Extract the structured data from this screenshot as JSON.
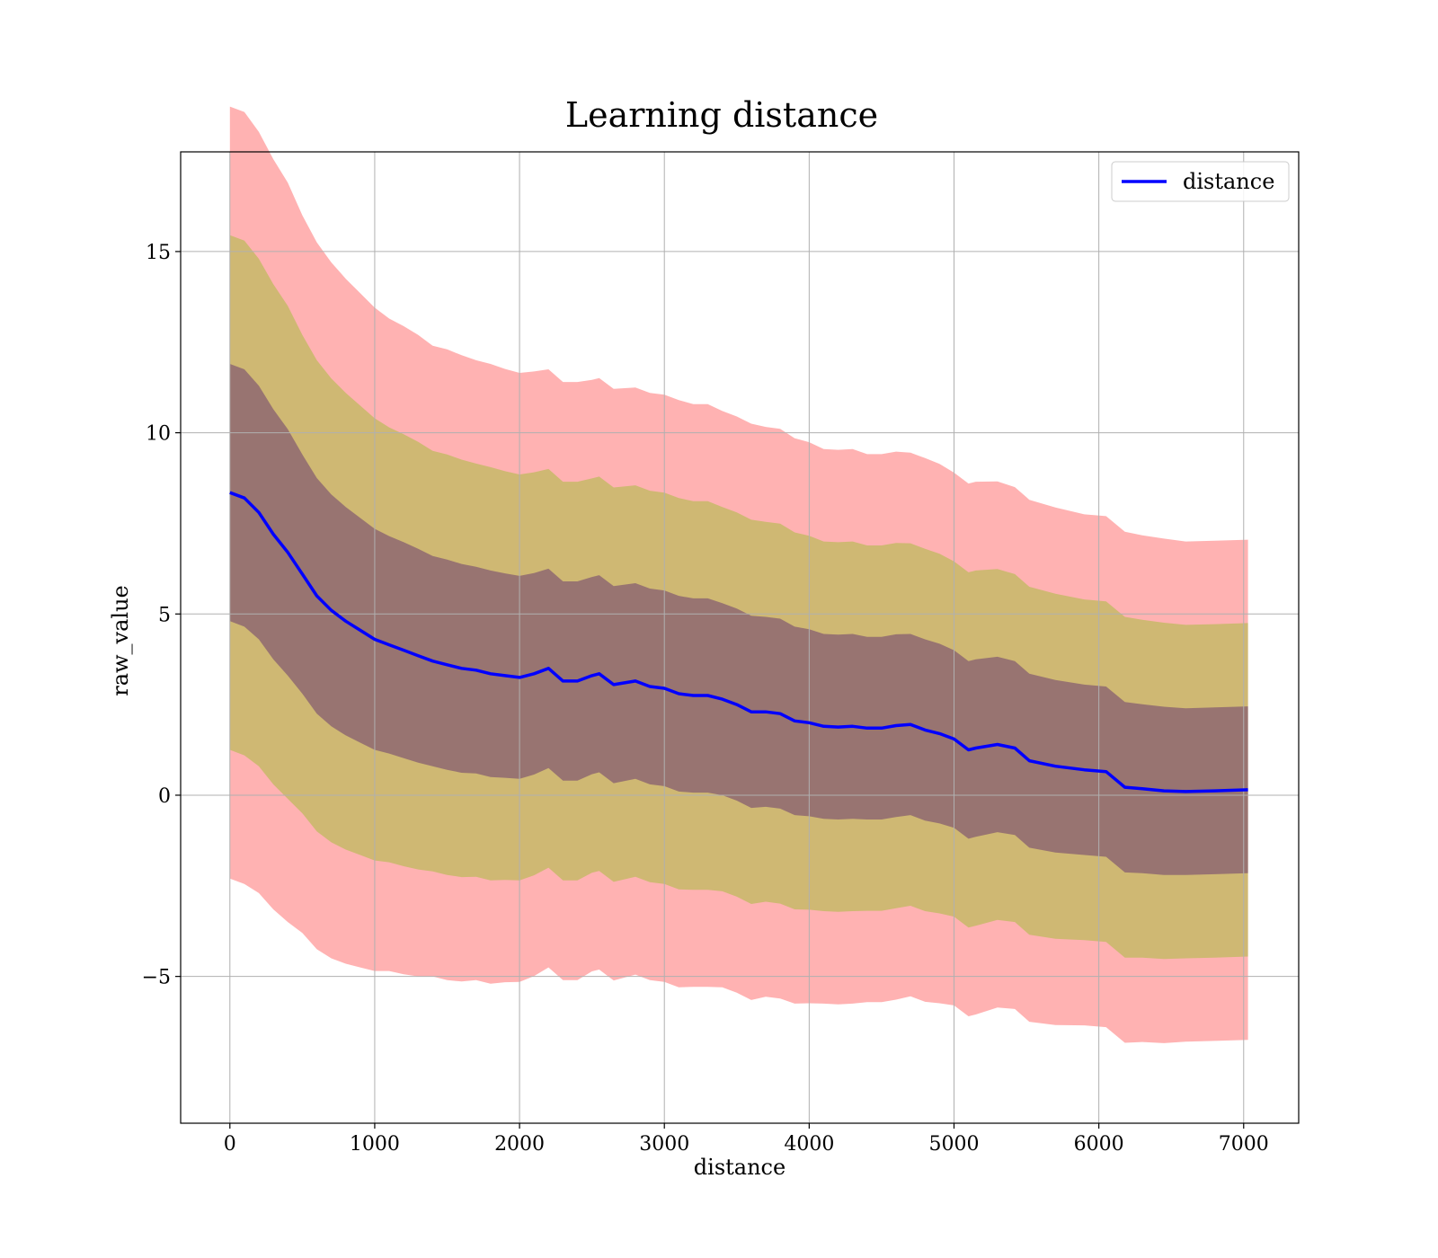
{
  "chart_data": {
    "type": "line",
    "title": "Learning distance",
    "xlabel": "distance",
    "ylabel": "raw_value",
    "xlim": [
      -340,
      7380
    ],
    "ylim": [
      -9.05,
      17.75
    ],
    "grid": true,
    "legend": {
      "placement": "top-right",
      "entries": [
        "distance"
      ]
    },
    "x_ticks": [
      0,
      1000,
      2000,
      3000,
      4000,
      5000,
      6000,
      7000
    ],
    "x_tick_labels": [
      "0",
      "1000",
      "2000",
      "3000",
      "4000",
      "5000",
      "6000",
      "7000"
    ],
    "y_ticks": [
      -5,
      0,
      5,
      10,
      15
    ],
    "y_tick_labels": [
      "−5",
      "0",
      "5",
      "10",
      "15"
    ],
    "colors": {
      "line": "#0000ff",
      "band_3std": "#ff5f5f",
      "band_2std": "#9bbf2f",
      "band_1std": "#5b2a6f",
      "grid": "#b0b0b0"
    },
    "series": [
      {
        "name": "distance",
        "x": [
          0,
          100,
          200,
          300,
          400,
          500,
          600,
          700,
          800,
          900,
          1000,
          1100,
          1200,
          1300,
          1400,
          1500,
          1600,
          1700,
          1800,
          1900,
          2000,
          2100,
          2200,
          2300,
          2400,
          2500,
          2550,
          2650,
          2800,
          2900,
          3000,
          3100,
          3200,
          3300,
          3400,
          3500,
          3600,
          3700,
          3800,
          3900,
          4000,
          4100,
          4200,
          4300,
          4400,
          4500,
          4600,
          4700,
          4800,
          4900,
          5000,
          5100,
          5150,
          5300,
          5420,
          5520,
          5700,
          5900,
          6050,
          6180,
          6300,
          6450,
          6600,
          6800,
          7030
        ],
        "y": [
          8.35,
          8.2,
          7.8,
          7.2,
          6.7,
          6.1,
          5.5,
          5.1,
          4.8,
          4.55,
          4.3,
          4.15,
          4.0,
          3.85,
          3.7,
          3.6,
          3.5,
          3.45,
          3.35,
          3.3,
          3.25,
          3.35,
          3.5,
          3.15,
          3.15,
          3.3,
          3.35,
          3.05,
          3.15,
          3.0,
          2.95,
          2.8,
          2.75,
          2.75,
          2.65,
          2.5,
          2.3,
          2.3,
          2.25,
          2.05,
          2.0,
          1.9,
          1.88,
          1.9,
          1.85,
          1.85,
          1.92,
          1.95,
          1.8,
          1.7,
          1.55,
          1.25,
          1.3,
          1.4,
          1.3,
          0.95,
          0.8,
          0.7,
          0.65,
          0.22,
          0.18,
          0.12,
          0.1,
          0.12,
          0.15
        ],
        "std": [
          3.55,
          3.55,
          3.5,
          3.45,
          3.4,
          3.3,
          3.25,
          3.2,
          3.15,
          3.1,
          3.05,
          3.0,
          2.98,
          2.95,
          2.9,
          2.9,
          2.88,
          2.85,
          2.85,
          2.82,
          2.8,
          2.78,
          2.75,
          2.75,
          2.75,
          2.72,
          2.72,
          2.72,
          2.7,
          2.7,
          2.7,
          2.7,
          2.68,
          2.68,
          2.65,
          2.65,
          2.65,
          2.62,
          2.62,
          2.6,
          2.58,
          2.55,
          2.55,
          2.55,
          2.52,
          2.52,
          2.52,
          2.5,
          2.5,
          2.48,
          2.45,
          2.45,
          2.45,
          2.42,
          2.4,
          2.4,
          2.38,
          2.35,
          2.35,
          2.35,
          2.33,
          2.32,
          2.3,
          2.3,
          2.3
        ]
      }
    ]
  }
}
